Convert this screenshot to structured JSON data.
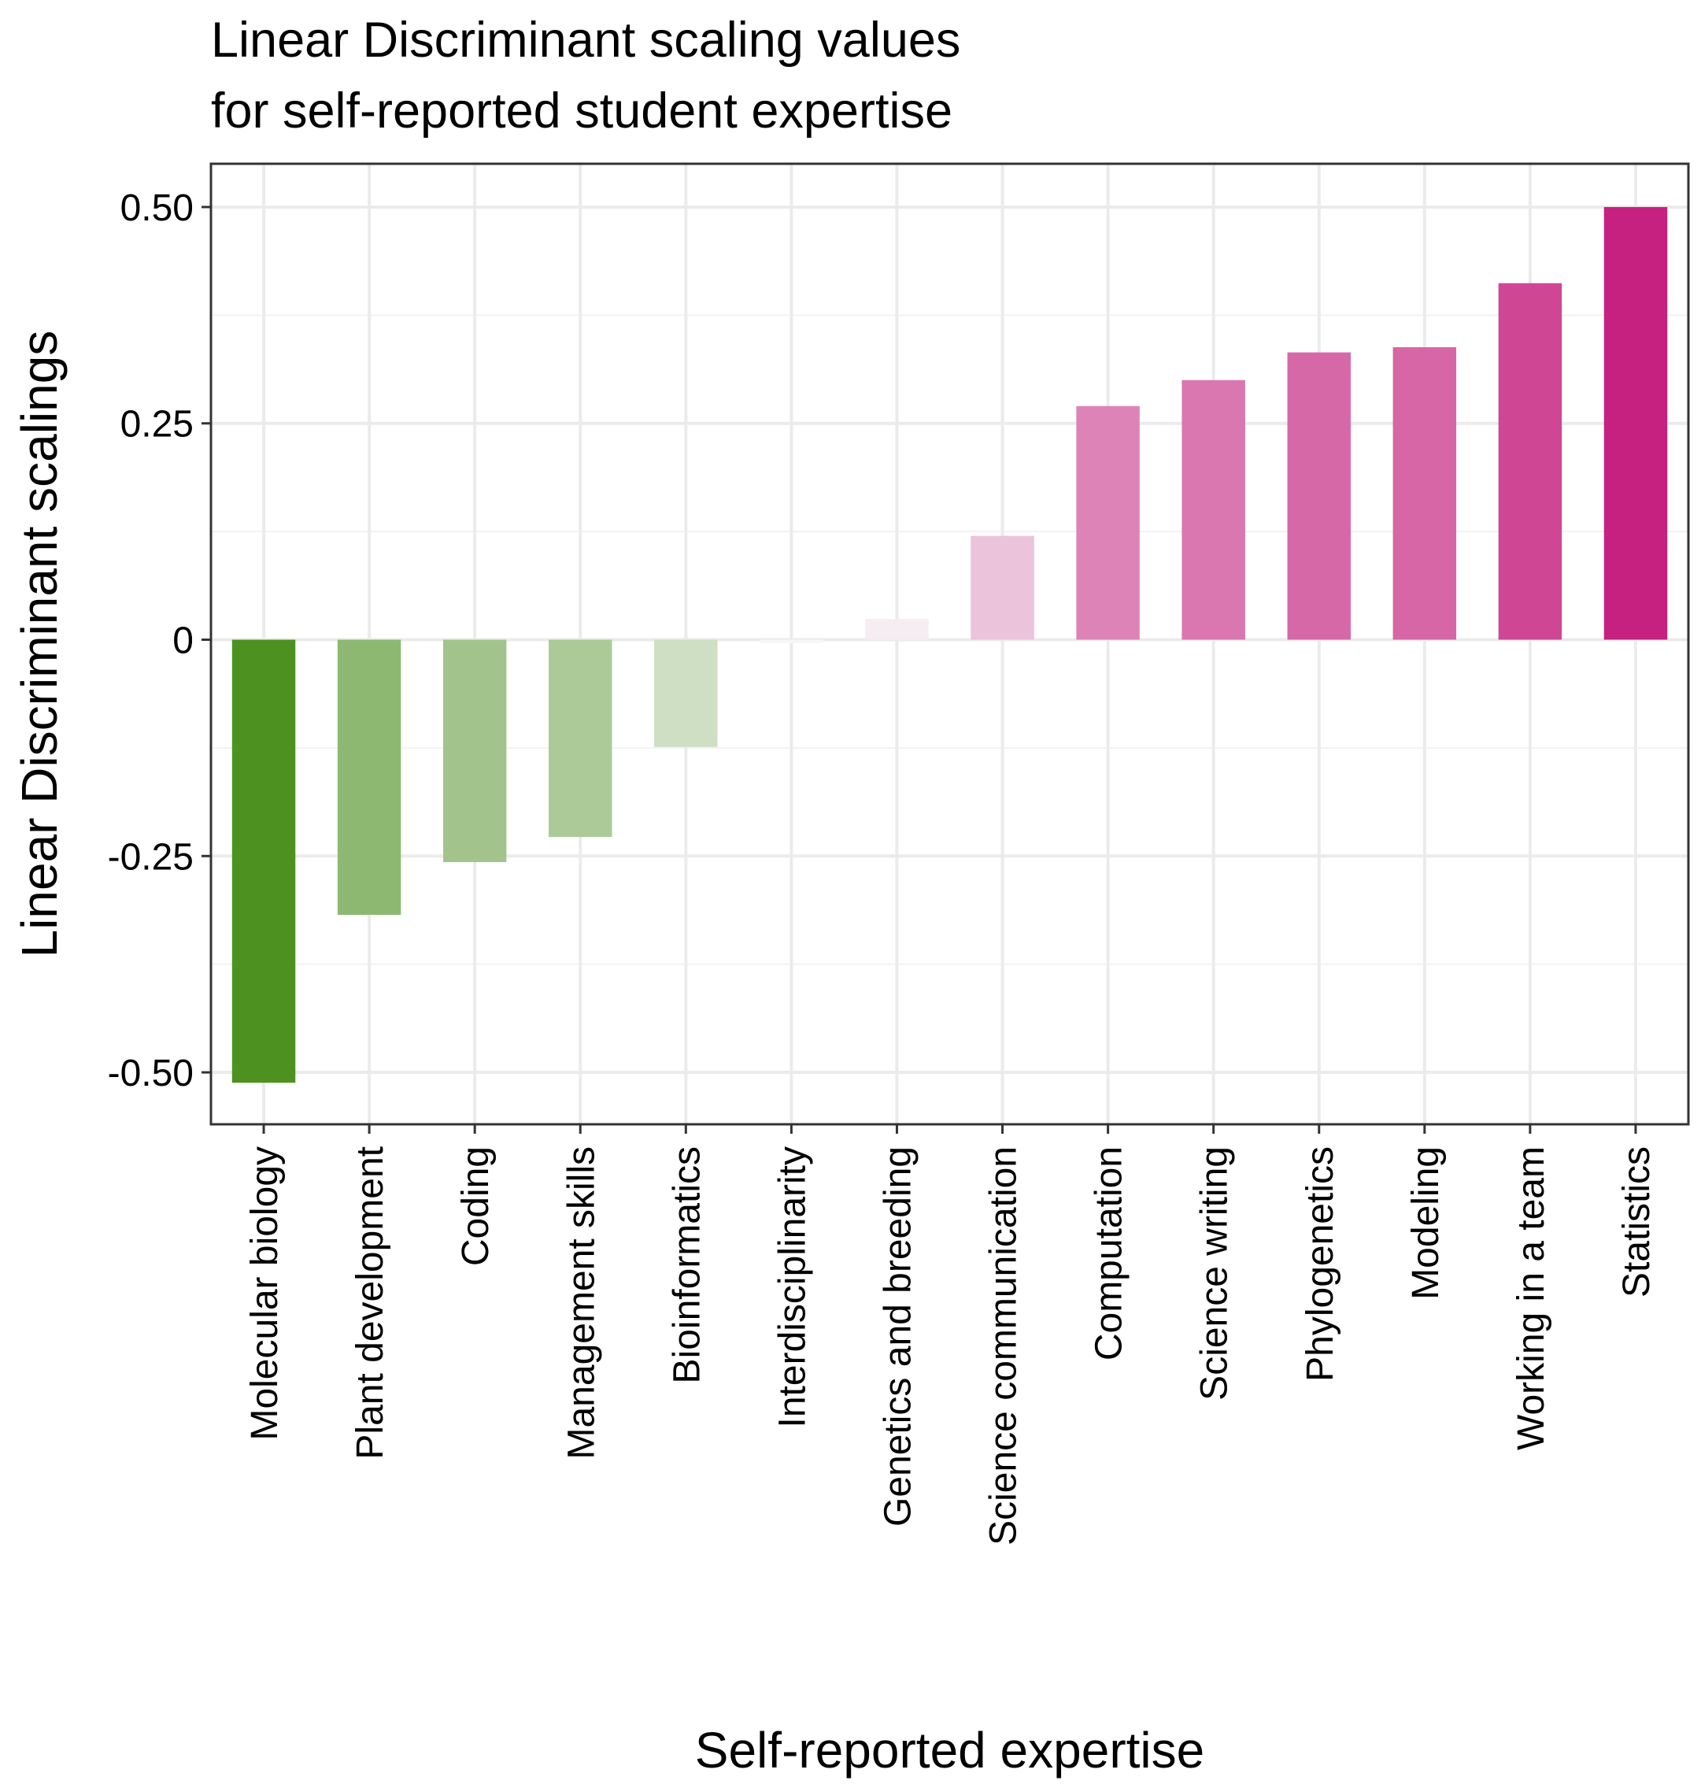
{
  "chart_data": {
    "type": "bar",
    "title": [
      "Linear Discriminant scaling values",
      "for self-reported student expertise"
    ],
    "xlabel": "Self-reported expertise",
    "ylabel": "Linear Discriminant scalings",
    "ylim": [
      -0.56,
      0.55
    ],
    "yticks": [
      -0.5,
      -0.25,
      0,
      0.25,
      0.5
    ],
    "ytick_labels": [
      "-0.50",
      "-0.25",
      "0",
      "0.25",
      "0.50"
    ],
    "grid": true,
    "categories": [
      "Molecular biology",
      "Plant development",
      "Coding",
      "Management skills",
      "Bioinformatics",
      "Interdisciplinarity",
      "Genetics and breeding",
      "Science communication",
      "Computation",
      "Science writing",
      "Phylogenetics",
      "Modeling",
      "Working in a team",
      "Statistics"
    ],
    "values": [
      -0.512,
      -0.318,
      -0.257,
      -0.228,
      -0.124,
      -0.004,
      0.024,
      0.12,
      0.27,
      0.3,
      0.332,
      0.338,
      0.412,
      0.5
    ],
    "colors": {
      "negative_max": "#4d9221",
      "neutral": "#f7f7f7",
      "positive_max": "#c51b7d",
      "panel_border": "#333333",
      "grid_major": "#ebebeb",
      "grid_minor": "#f2f2f2"
    }
  }
}
